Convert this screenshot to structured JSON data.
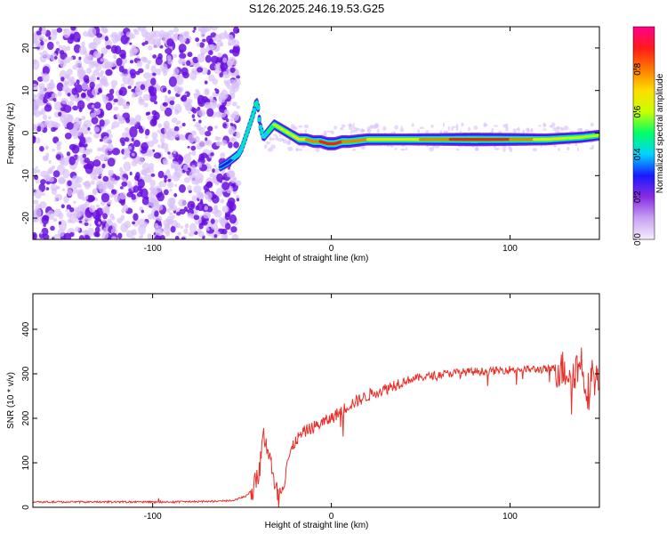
{
  "title": "S126.2025.246.19.53.G25",
  "colors": {
    "snr_line": "#e8302a",
    "axes": "#000000",
    "noise_dark": "#6a0fe0",
    "noise_light": "#d8c0f8"
  },
  "chart_data": [
    {
      "type": "heatmap",
      "xlabel": "Height of straight line (km)",
      "ylabel": "Frequency (Hz)",
      "xlim": [
        -167,
        150
      ],
      "ylim": [
        -25,
        25
      ],
      "xticks": [
        -100,
        0,
        100
      ],
      "yticks": [
        -20,
        -10,
        0,
        10,
        20
      ],
      "grid": false,
      "ridge": {
        "x": [
          -62,
          -58,
          -55,
          -52,
          -50,
          -48,
          -46,
          -44,
          -43,
          -42,
          -41,
          -40,
          -38,
          -36,
          -34,
          -32,
          -30,
          -26,
          -22,
          -18,
          -14,
          -10,
          -6,
          -2,
          2,
          6,
          10,
          20,
          40,
          60,
          80,
          100,
          120,
          140,
          150
        ],
        "y": [
          -8,
          -7,
          -6,
          -5,
          -3.5,
          -1,
          1.5,
          4,
          5.5,
          7.5,
          6,
          2,
          -1,
          0,
          1,
          2,
          1.5,
          0.5,
          -0.5,
          -1.5,
          -1.5,
          -2,
          -2,
          -2.5,
          -2.5,
          -2,
          -2,
          -1.5,
          -1.5,
          -1.5,
          -1.5,
          -1.5,
          -1.5,
          -1,
          -0.5
        ],
        "amplitude": [
          0.25,
          0.3,
          0.35,
          0.35,
          0.4,
          0.35,
          0.35,
          0.4,
          0.45,
          0.45,
          0.4,
          0.35,
          0.4,
          0.45,
          0.5,
          0.55,
          0.55,
          0.6,
          0.6,
          0.7,
          0.75,
          0.8,
          0.85,
          0.9,
          0.9,
          0.85,
          0.8,
          0.75,
          0.7,
          0.8,
          0.95,
          0.85,
          0.7,
          0.6,
          0.55
        ]
      },
      "colorbar": {
        "label": "Normalized spectral amplitude",
        "ticks": [
          0.0,
          0.2,
          0.4,
          0.6,
          0.8
        ],
        "tick_labels": [
          "0.0",
          "0.2",
          "0.4",
          "0.6",
          "0.8"
        ],
        "range": [
          0,
          1
        ],
        "stops": [
          "#f6ecfc",
          "#c7a2f3",
          "#8a2be2",
          "#1a1aff",
          "#00d4ff",
          "#00ff66",
          "#c8ff00",
          "#ffdd00",
          "#ff7a00",
          "#ff1a1a",
          "#ff0090"
        ]
      }
    },
    {
      "type": "line",
      "xlabel": "Height of straight line (km)",
      "ylabel": "SNR (10 * v/v)",
      "xlim": [
        -167,
        150
      ],
      "ylim": [
        0,
        480
      ],
      "xticks": [
        -100,
        0,
        100
      ],
      "yticks": [
        0,
        100,
        200,
        300,
        400
      ],
      "grid": false,
      "series": [
        {
          "x": [
            -167,
            -150,
            -130,
            -110,
            -90,
            -70,
            -55,
            -48,
            -44,
            -42,
            -40,
            -38,
            -36,
            -34,
            -32,
            -30,
            -28,
            -26,
            -25,
            -22,
            -20,
            -15,
            -10,
            -5,
            0,
            5,
            10,
            15,
            20,
            25,
            30,
            35,
            40,
            45,
            50,
            60,
            70,
            80,
            90,
            100,
            110,
            120,
            125,
            130,
            135,
            138,
            140,
            142,
            144,
            146,
            148,
            150
          ],
          "y": [
            12,
            12,
            12,
            12,
            12,
            13,
            15,
            25,
            40,
            60,
            90,
            160,
            140,
            110,
            40,
            30,
            40,
            60,
            100,
            130,
            150,
            170,
            180,
            190,
            200,
            215,
            230,
            240,
            250,
            260,
            265,
            275,
            283,
            288,
            292,
            298,
            303,
            305,
            306,
            310,
            310,
            310,
            312,
            310,
            305,
            315,
            330,
            280,
            260,
            300,
            290,
            280
          ]
        }
      ]
    }
  ]
}
